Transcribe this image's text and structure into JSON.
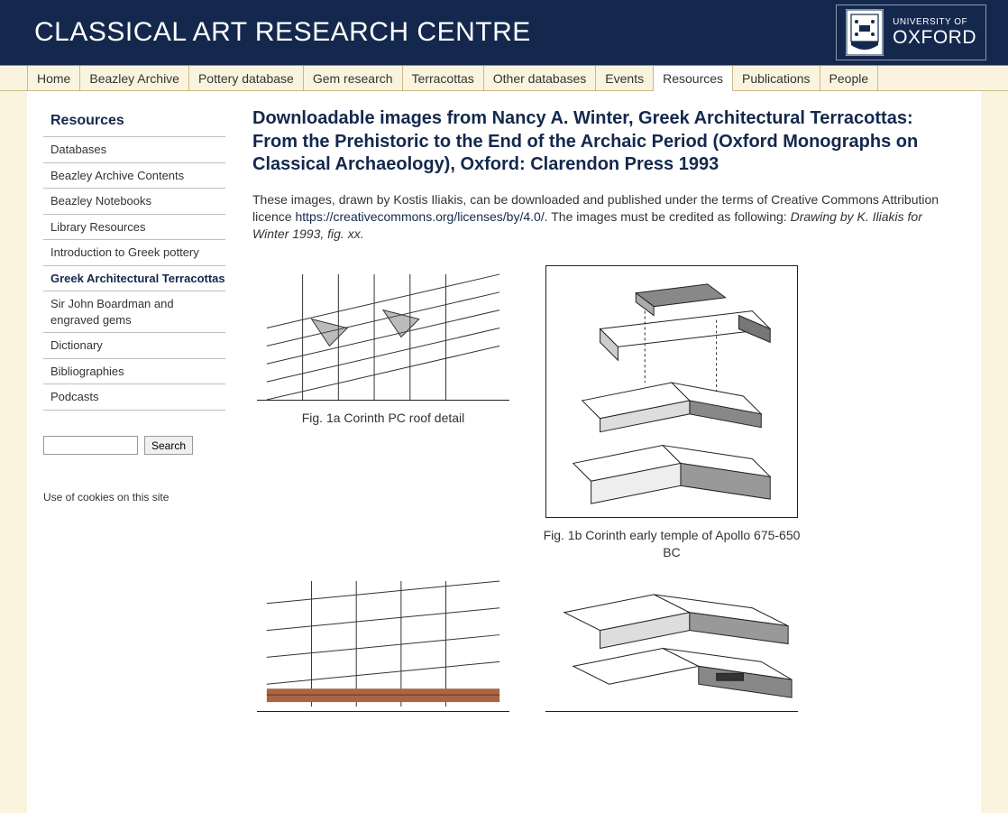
{
  "header": {
    "title": "CLASSICAL ART RESEARCH CENTRE",
    "logo_line1": "UNIVERSITY OF",
    "logo_line2": "OXFORD"
  },
  "nav": {
    "items": [
      "Home",
      "Beazley Archive",
      "Pottery database",
      "Gem research",
      "Terracottas",
      "Other databases",
      "Events",
      "Resources",
      "Publications",
      "People"
    ],
    "active_index": 7
  },
  "sidebar": {
    "title": "Resources",
    "items": [
      "Databases",
      "Beazley Archive Contents",
      "Beazley Notebooks",
      "Library Resources",
      "Introduction to Greek pottery",
      "Greek Architectural Terracottas",
      "Sir John Boardman and engraved gems",
      "Dictionary",
      "Bibliographies",
      "Podcasts"
    ],
    "active_index": 5,
    "search_button": "Search",
    "cookie_text": "Use of cookies on this site"
  },
  "content": {
    "title": "Downloadable images from Nancy A. Winter, Greek Architectural Terracottas: From the Prehistoric to the End of the Archaic Period (Oxford Monographs on Classical Archaeology), Oxford: Clarendon Press 1993",
    "intro_pre": "These images, drawn by Kostis Iliakis, can be downloaded and published under the terms of Creative Commons Attribution licence ",
    "intro_link": "https://creativecommons.org/licenses/by/4.0/",
    "intro_post": ". The images must be credited as following: ",
    "intro_credit": "Drawing by K. Iliakis for Winter 1993, fig. xx.",
    "figures": [
      {
        "caption": "Fig. 1a Corinth PC roof detail"
      },
      {
        "caption": "Fig. 1b Corinth early temple of Apollo 675-650 BC"
      },
      {
        "caption": ""
      },
      {
        "caption": ""
      }
    ]
  }
}
